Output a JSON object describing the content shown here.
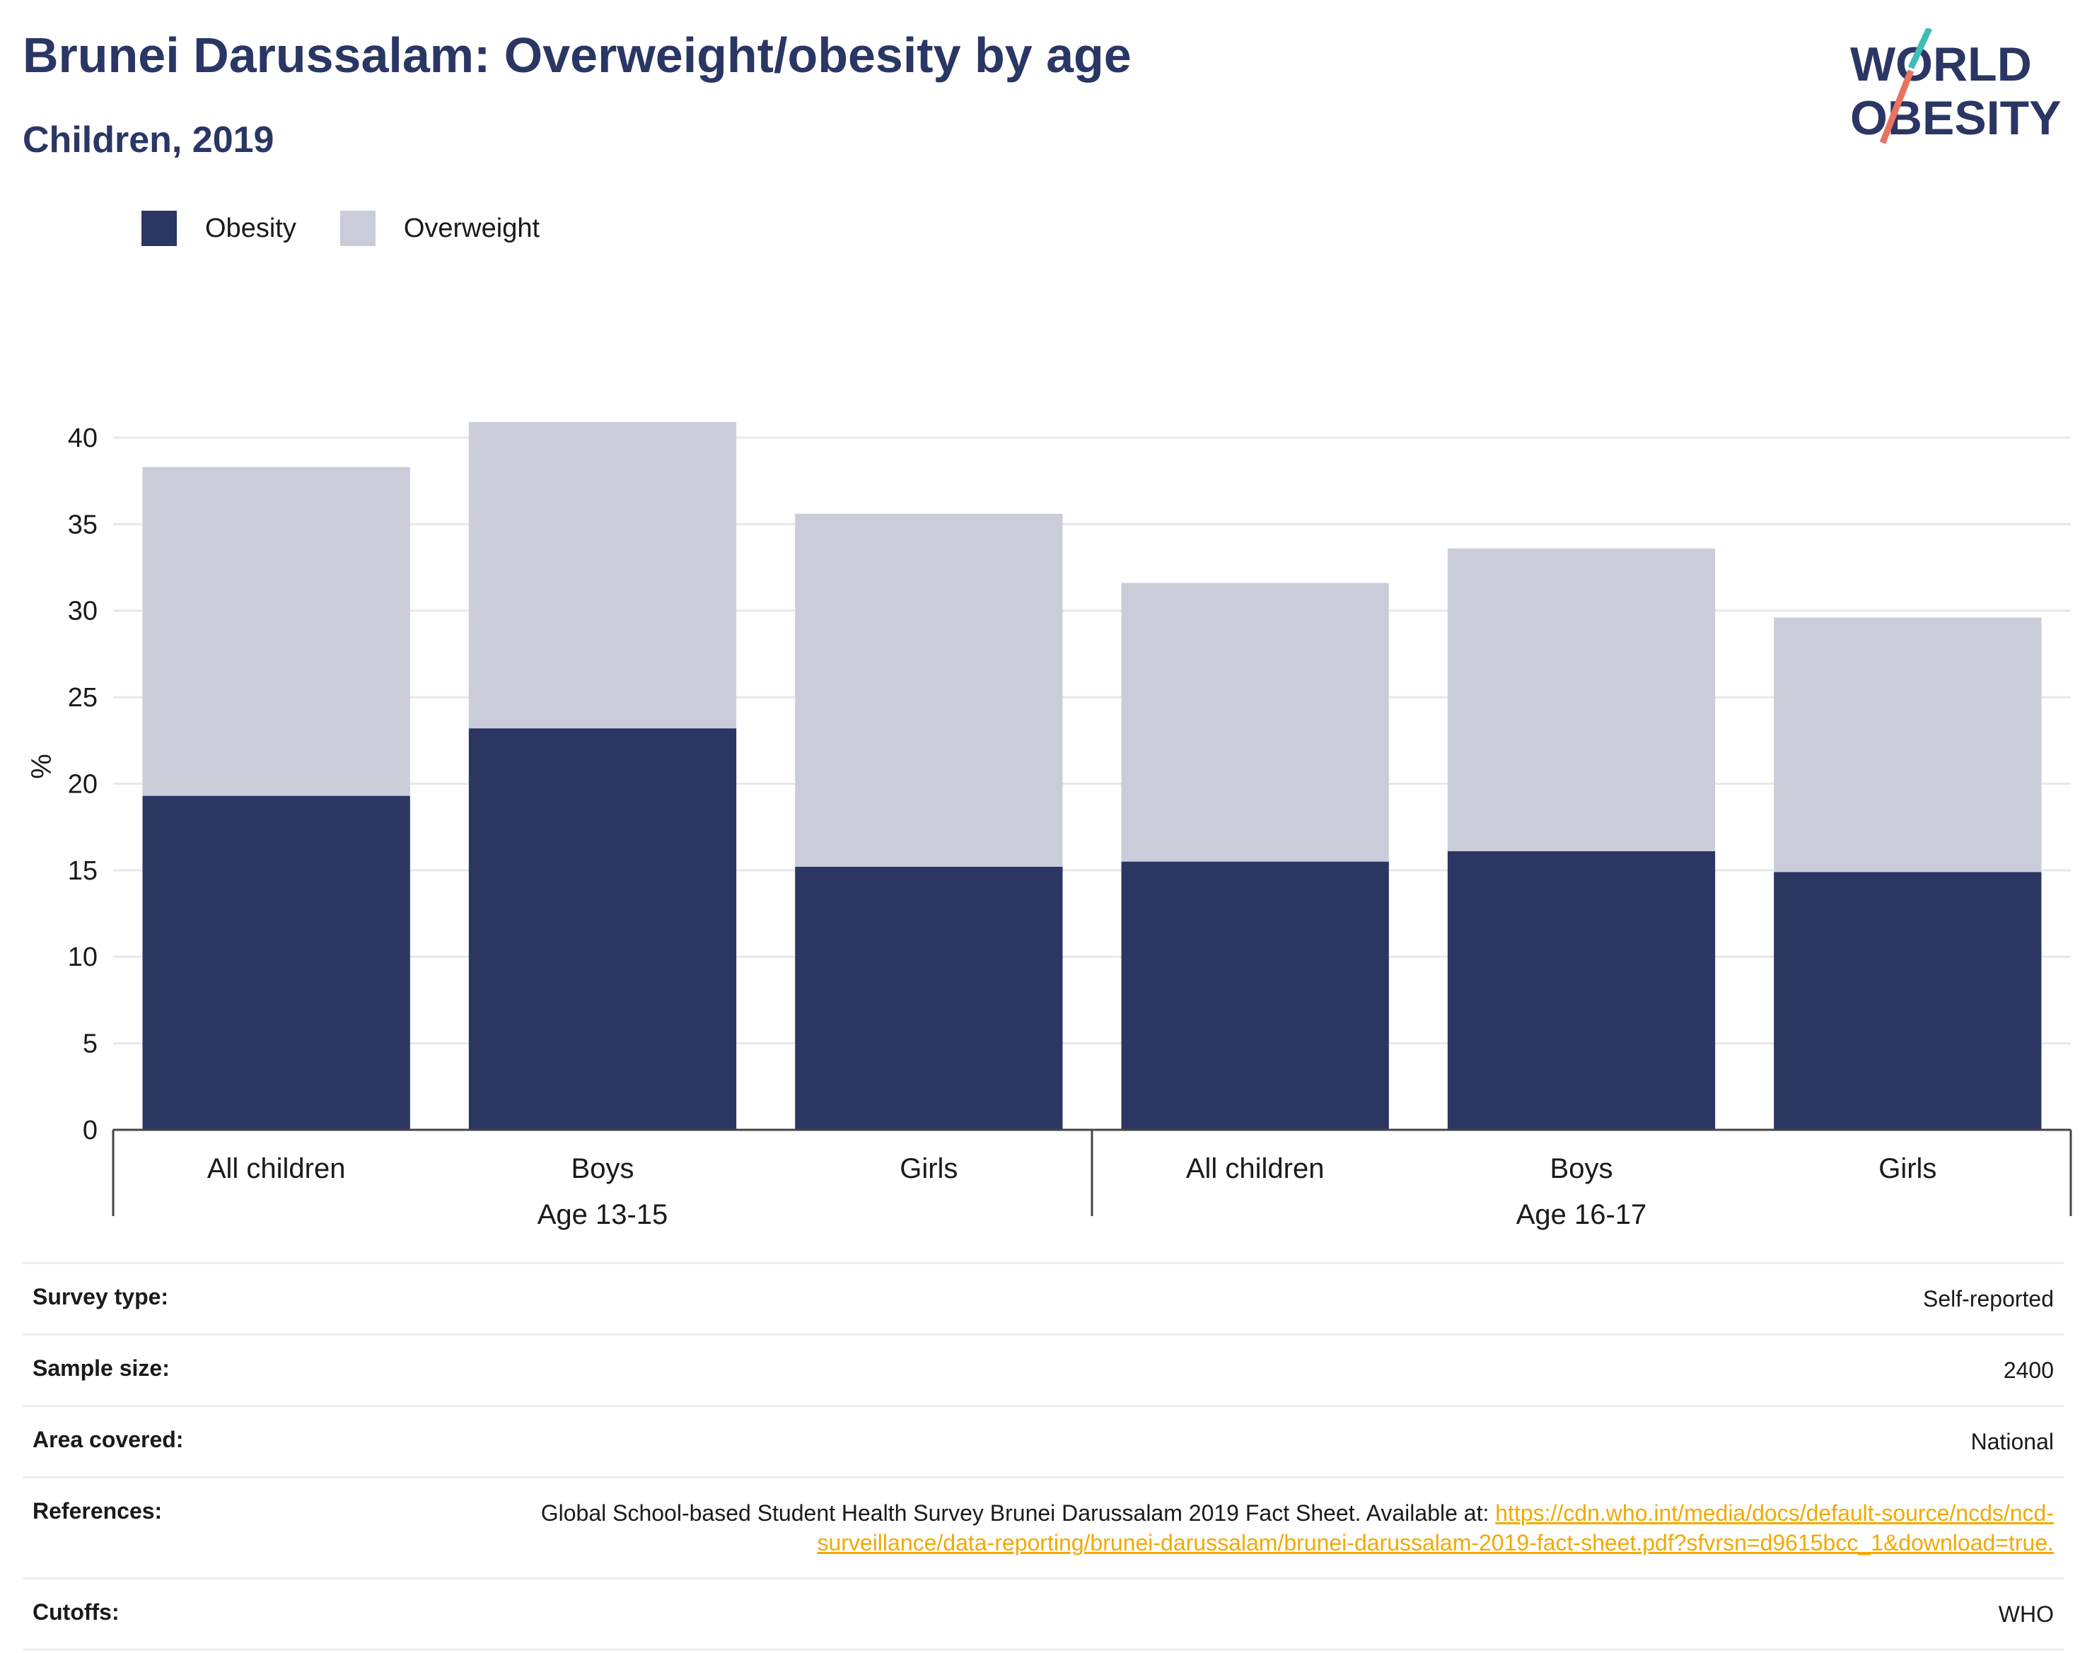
{
  "header": {
    "title": "Brunei Darussalam: Overweight/obesity by age",
    "subtitle": "Children, 2019"
  },
  "logo": {
    "line1": "WORLD",
    "line2": "OBESITY",
    "accent_teal": "#3fbdb5",
    "accent_coral": "#e8735e"
  },
  "colors": {
    "obesity": "#2b3663",
    "overweight": "#cacdd9",
    "grid": "#e6e8ee",
    "axis_text": "#1a1a1a",
    "link": "#f2a900"
  },
  "chart_data": {
    "type": "bar",
    "stacked": true,
    "title": "Brunei Darussalam: Overweight/obesity by age",
    "subtitle": "Children, 2019",
    "ylabel": "%",
    "ylim": [
      0,
      40
    ],
    "yticks": [
      0,
      5,
      10,
      15,
      20,
      25,
      30,
      35,
      40
    ],
    "grid": true,
    "legend_position": "top-left",
    "categories": [
      "All children",
      "Boys",
      "Girls",
      "All children",
      "Boys",
      "Girls"
    ],
    "groups": [
      {
        "label": "Age 13-15",
        "categories": [
          "All children",
          "Boys",
          "Girls"
        ]
      },
      {
        "label": "Age 16-17",
        "categories": [
          "All children",
          "Boys",
          "Girls"
        ]
      }
    ],
    "series": [
      {
        "name": "Obesity",
        "color": "#2b3663",
        "values": [
          19.3,
          23.2,
          15.2,
          15.5,
          16.1,
          14.9
        ]
      },
      {
        "name": "Overweight",
        "color": "#cacdd9",
        "values": [
          19.0,
          17.7,
          20.4,
          16.1,
          17.5,
          14.7
        ]
      }
    ]
  },
  "meta": {
    "survey_type": {
      "label": "Survey type:",
      "value": "Self-reported"
    },
    "sample_size": {
      "label": "Sample size:",
      "value": "2400"
    },
    "area_covered": {
      "label": "Area covered:",
      "value": "National"
    },
    "references": {
      "label": "References:",
      "text": "Global School-based Student Health Survey Brunei Darussalam 2019 Fact Sheet. Available at: ",
      "link": "https://cdn.who.int/media/docs/default-source/ncds/ncd-surveillance/data-reporting/brunei-darussalam/brunei-darussalam-2019-fact-sheet.pdf?sfvrsn=d9615bcc_1&download=true."
    },
    "cutoffs": {
      "label": "Cutoffs:",
      "value": "WHO"
    }
  }
}
